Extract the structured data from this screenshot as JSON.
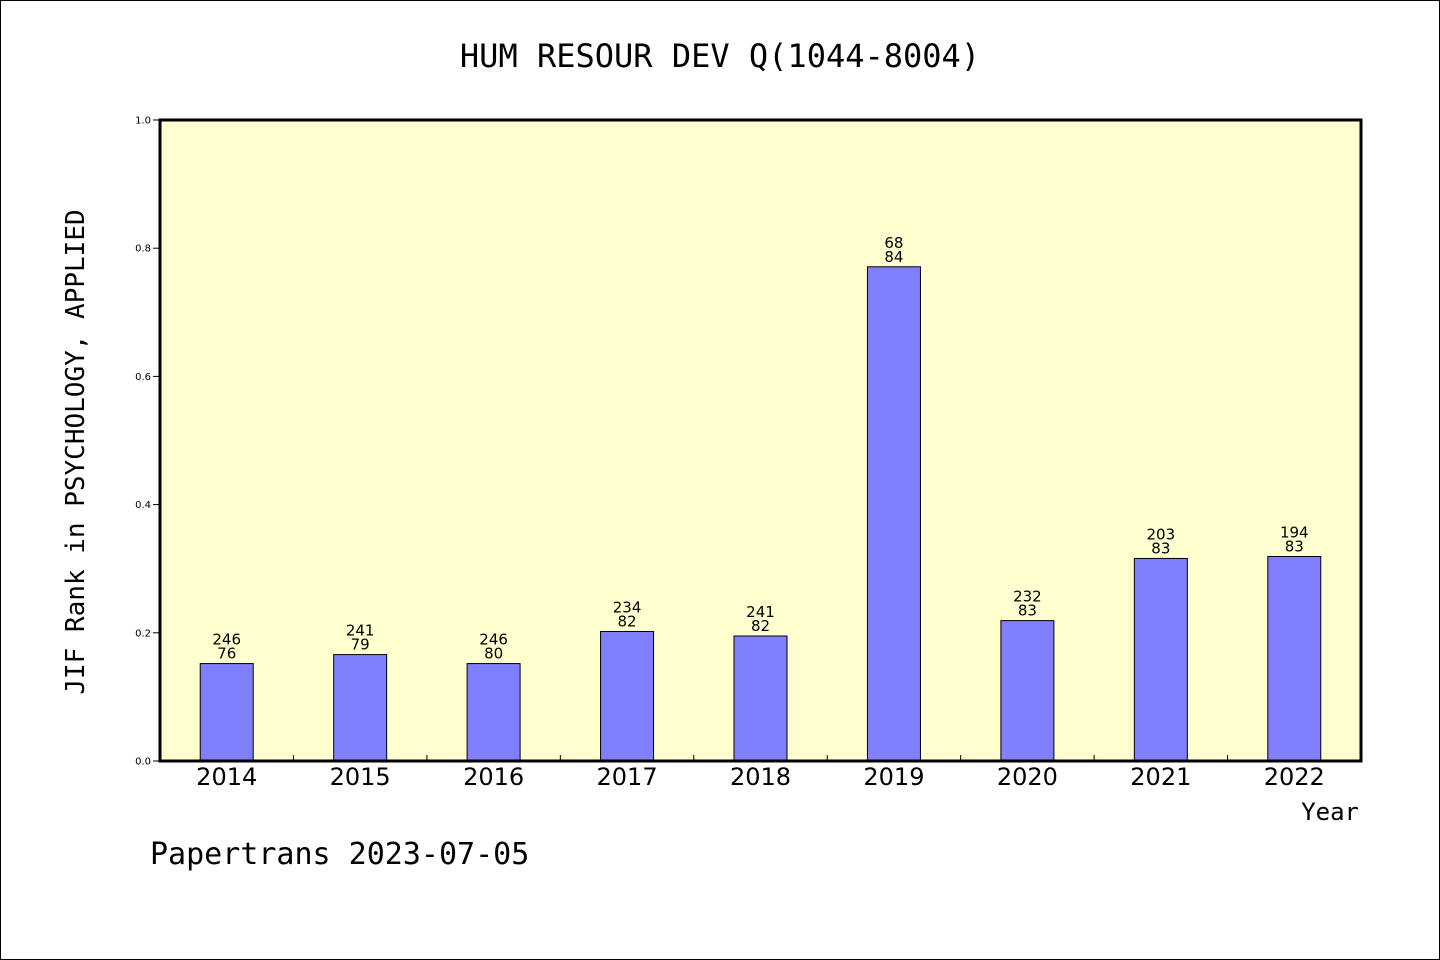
{
  "chart_data": {
    "type": "bar",
    "title": "HUM RESOUR DEV Q(1044-8004)",
    "xlabel": "Year",
    "ylabel": "JIF Rank in PSYCHOLOGY, APPLIED",
    "ylim": [
      0,
      1.0
    ],
    "yticks": [
      "0.0",
      "0.2",
      "0.4",
      "0.6",
      "0.8",
      "1.0"
    ],
    "categories": [
      "2014",
      "2015",
      "2016",
      "2017",
      "2018",
      "2019",
      "2020",
      "2021",
      "2022"
    ],
    "values": [
      0.152,
      0.166,
      0.152,
      0.202,
      0.195,
      0.771,
      0.219,
      0.316,
      0.319
    ],
    "labels_top": [
      "246",
      "241",
      "246",
      "234",
      "241",
      "68",
      "232",
      "203",
      "194"
    ],
    "labels_bottom": [
      "76",
      "79",
      "80",
      "82",
      "82",
      "84",
      "83",
      "83",
      "83"
    ],
    "plot_background": "#ffffd0",
    "bar_color": "#8080ff",
    "grid": false
  },
  "footer": "Papertrans 2023-07-05"
}
